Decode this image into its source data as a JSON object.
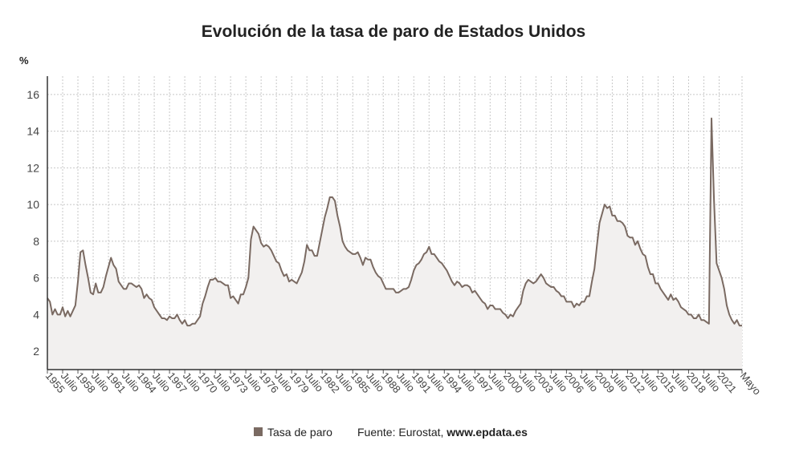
{
  "chart_data": {
    "type": "line",
    "title": "Evolución de la tasa de paro de Estados Unidos",
    "y_unit": "%",
    "source": "Fuente: Eurostat,",
    "source_link": "www.epdata.es",
    "grid": true,
    "ylim": [
      1,
      17
    ],
    "yticks": [
      2,
      4,
      6,
      8,
      10,
      12,
      14,
      16
    ],
    "categories": [
      "1955",
      null,
      null,
      null,
      null,
      null,
      "Julio",
      null,
      null,
      null,
      null,
      null,
      "1958",
      null,
      null,
      null,
      null,
      null,
      "Julio",
      null,
      null,
      null,
      null,
      null,
      "1961",
      null,
      null,
      null,
      null,
      null,
      "Julio",
      null,
      null,
      null,
      null,
      null,
      "1964",
      null,
      null,
      null,
      null,
      null,
      "Julio",
      null,
      null,
      null,
      null,
      null,
      "1967",
      null,
      null,
      null,
      null,
      null,
      "Julio",
      null,
      null,
      null,
      null,
      null,
      "1970",
      null,
      null,
      null,
      null,
      null,
      "Julio",
      null,
      null,
      null,
      null,
      null,
      "1973",
      null,
      null,
      null,
      null,
      null,
      "Julio",
      null,
      null,
      null,
      null,
      null,
      "1976",
      null,
      null,
      null,
      null,
      null,
      "Julio",
      null,
      null,
      null,
      null,
      null,
      "1979",
      null,
      null,
      null,
      null,
      null,
      "Julio",
      null,
      null,
      null,
      null,
      null,
      "1982",
      null,
      null,
      null,
      null,
      null,
      "Julio",
      null,
      null,
      null,
      null,
      null,
      "1985",
      null,
      null,
      null,
      null,
      null,
      "Julio",
      null,
      null,
      null,
      null,
      null,
      "1988",
      null,
      null,
      null,
      null,
      null,
      "Julio",
      null,
      null,
      null,
      null,
      null,
      "1991",
      null,
      null,
      null,
      null,
      null,
      "Julio",
      null,
      null,
      null,
      null,
      null,
      "1994",
      null,
      null,
      null,
      null,
      null,
      "Julio",
      null,
      null,
      null,
      null,
      null,
      "1997",
      null,
      null,
      null,
      null,
      null,
      "Julio",
      null,
      null,
      null,
      null,
      null,
      "2000",
      null,
      null,
      null,
      null,
      null,
      "Julio",
      null,
      null,
      null,
      null,
      null,
      "2003",
      null,
      null,
      null,
      null,
      null,
      "Julio",
      null,
      null,
      null,
      null,
      null,
      "2006",
      null,
      null,
      null,
      null,
      null,
      "Julio",
      null,
      null,
      null,
      null,
      null,
      "2009",
      null,
      null,
      null,
      null,
      null,
      "Julio",
      null,
      null,
      null,
      null,
      null,
      "2012",
      null,
      null,
      null,
      null,
      null,
      "Julio",
      null,
      null,
      null,
      null,
      null,
      "2015",
      null,
      null,
      null,
      null,
      null,
      "Julio",
      null,
      null,
      null,
      null,
      null,
      "2018",
      null,
      null,
      null,
      null,
      null,
      "Julio",
      null,
      null,
      null,
      null,
      null,
      "2021",
      null,
      null,
      null,
      null,
      null,
      null,
      null,
      null,
      "Mayo"
    ],
    "series": [
      {
        "name": "Tasa de paro",
        "color": "#7a6a62",
        "values": [
          4.9,
          4.7,
          4.0,
          4.3,
          4.0,
          4.0,
          4.4,
          3.9,
          4.2,
          3.9,
          4.2,
          4.5,
          5.8,
          7.4,
          7.5,
          6.7,
          6.0,
          5.2,
          5.1,
          5.7,
          5.2,
          5.2,
          5.5,
          6.1,
          6.6,
          7.1,
          6.7,
          6.5,
          5.8,
          5.6,
          5.4,
          5.4,
          5.7,
          5.7,
          5.6,
          5.5,
          5.6,
          5.4,
          4.9,
          5.1,
          4.9,
          4.8,
          4.4,
          4.2,
          4.0,
          3.8,
          3.8,
          3.7,
          3.9,
          3.8,
          3.8,
          4.0,
          3.7,
          3.5,
          3.7,
          3.4,
          3.4,
          3.5,
          3.5,
          3.7,
          3.9,
          4.6,
          5.0,
          5.5,
          5.9,
          5.9,
          6.0,
          5.8,
          5.8,
          5.7,
          5.6,
          5.6,
          4.9,
          5.0,
          4.8,
          4.6,
          5.1,
          5.1,
          5.5,
          6.0,
          8.1,
          8.8,
          8.6,
          8.4,
          7.9,
          7.7,
          7.8,
          7.7,
          7.5,
          7.2,
          6.9,
          6.8,
          6.4,
          6.1,
          6.2,
          5.8,
          5.9,
          5.8,
          5.7,
          6.0,
          6.3,
          6.9,
          7.8,
          7.5,
          7.5,
          7.2,
          7.2,
          7.9,
          8.6,
          9.3,
          9.8,
          10.4,
          10.4,
          10.2,
          9.4,
          8.8,
          8.0,
          7.7,
          7.5,
          7.4,
          7.3,
          7.3,
          7.4,
          7.1,
          6.7,
          7.1,
          7.0,
          7.0,
          6.6,
          6.3,
          6.1,
          6.0,
          5.7,
          5.4,
          5.4,
          5.4,
          5.4,
          5.2,
          5.2,
          5.3,
          5.4,
          5.4,
          5.5,
          5.9,
          6.4,
          6.7,
          6.8,
          7.0,
          7.3,
          7.4,
          7.7,
          7.3,
          7.3,
          7.1,
          6.9,
          6.8,
          6.6,
          6.4,
          6.1,
          5.8,
          5.6,
          5.8,
          5.7,
          5.5,
          5.6,
          5.6,
          5.5,
          5.2,
          5.3,
          5.1,
          4.9,
          4.7,
          4.6,
          4.3,
          4.5,
          4.5,
          4.3,
          4.3,
          4.3,
          4.1,
          4.0,
          3.8,
          4.0,
          3.9,
          4.2,
          4.4,
          4.6,
          5.3,
          5.7,
          5.9,
          5.8,
          5.7,
          5.8,
          6.0,
          6.2,
          6.0,
          5.7,
          5.6,
          5.5,
          5.5,
          5.3,
          5.2,
          5.0,
          5.0,
          4.7,
          4.7,
          4.7,
          4.4,
          4.6,
          4.5,
          4.7,
          4.7,
          5.0,
          5.0,
          5.8,
          6.5,
          7.8,
          9.0,
          9.5,
          10.0,
          9.8,
          9.9,
          9.4,
          9.4,
          9.1,
          9.1,
          9.0,
          8.8,
          8.3,
          8.2,
          8.2,
          7.8,
          8.0,
          7.6,
          7.3,
          7.2,
          6.6,
          6.2,
          6.2,
          5.7,
          5.7,
          5.4,
          5.2,
          5.0,
          4.8,
          5.1,
          4.8,
          4.9,
          4.7,
          4.4,
          4.3,
          4.2,
          4.0,
          4.0,
          3.8,
          3.8,
          4.0,
          3.7,
          3.7,
          3.6,
          3.5,
          14.7,
          10.2,
          6.8,
          6.4,
          6.0,
          5.4,
          4.5,
          4.0,
          3.7,
          3.5,
          3.7,
          3.4,
          3.4
        ]
      }
    ]
  }
}
